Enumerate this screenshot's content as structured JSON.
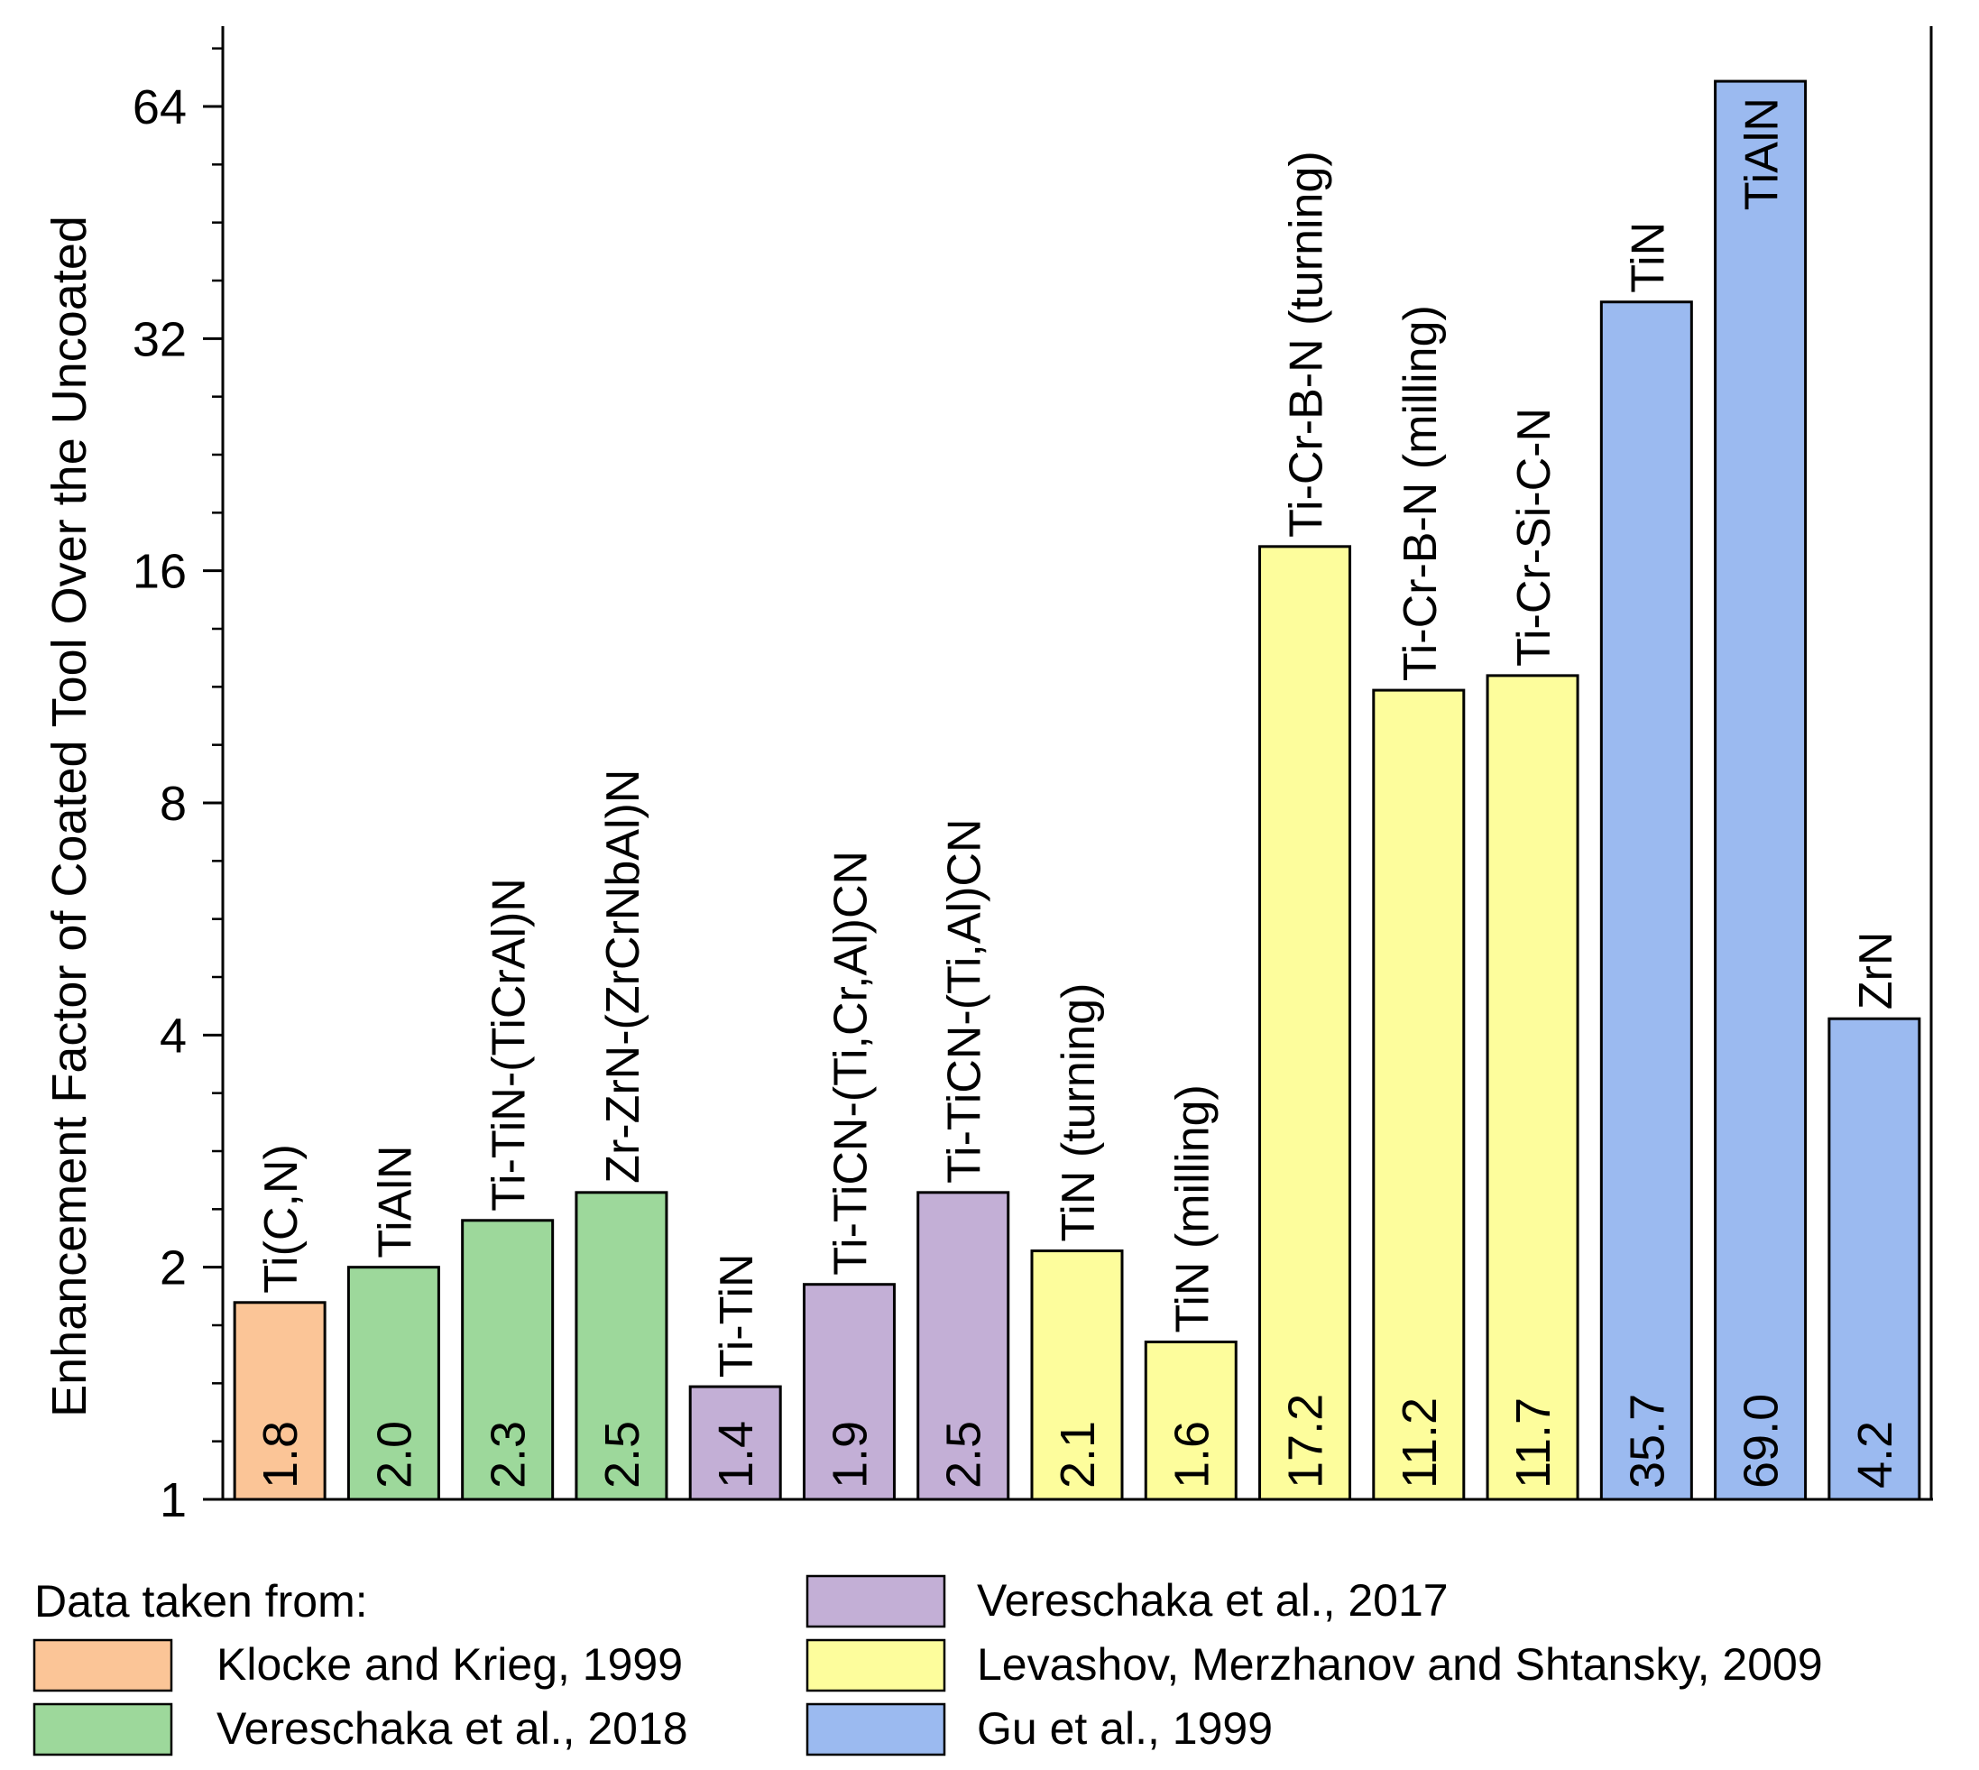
{
  "chart_data": {
    "type": "bar",
    "yscale": "log2",
    "ylabel": "Enhancement Factor of Coated Tool Over the Uncoated",
    "xlabel": "",
    "ylim": [
      1,
      90
    ],
    "yticks": [
      1,
      2,
      4,
      8,
      16,
      32,
      64
    ],
    "ytick_labels": [
      "1",
      "2",
      "4",
      "8",
      "16",
      "32",
      "64"
    ],
    "bars": [
      {
        "label": "Ti(C,N)",
        "value": 1.8,
        "value_text": "1.8",
        "group": 0
      },
      {
        "label": "TiAlN",
        "value": 2.0,
        "value_text": "2.0",
        "group": 1
      },
      {
        "label": "Ti-TiN-(TiCrAl)N",
        "value": 2.3,
        "value_text": "2.3",
        "group": 1
      },
      {
        "label": "Zr-ZrN-(ZrCrNbAl)N",
        "value": 2.5,
        "value_text": "2.5",
        "group": 1
      },
      {
        "label": "Ti-TiN",
        "value": 1.4,
        "value_text": "1.4",
        "group": 2
      },
      {
        "label": "Ti-TiCN-(Ti,Cr,Al)CN",
        "value": 1.9,
        "value_text": "1.9",
        "group": 2
      },
      {
        "label": "Ti-TiCN-(Ti,Al)CN",
        "value": 2.5,
        "value_text": "2.5",
        "group": 2
      },
      {
        "label": "TiN (turning)",
        "value": 2.1,
        "value_text": "2.1",
        "group": 3
      },
      {
        "label": "TiN (milling)",
        "value": 1.6,
        "value_text": "1.6",
        "group": 3
      },
      {
        "label": "Ti-Cr-B-N (turning)",
        "value": 17.2,
        "value_text": "17.2",
        "group": 3
      },
      {
        "label": "Ti-Cr-B-N (milling)",
        "value": 11.2,
        "value_text": "11.2",
        "group": 3
      },
      {
        "label": "Ti-Cr-Si-C-N",
        "value": 11.7,
        "value_text": "11.7",
        "group": 3
      },
      {
        "label": "TiN",
        "value": 35.7,
        "value_text": "35.7",
        "group": 4
      },
      {
        "label": "TiAlN",
        "value": 69.0,
        "value_text": "69.0",
        "group": 4
      },
      {
        "label": "ZrN",
        "value": 4.2,
        "value_text": "4.2",
        "group": 4
      }
    ],
    "groups": [
      {
        "name": "Klocke and Krieg, 1999",
        "color": "#fbc597"
      },
      {
        "name": "Vereschaka et al., 2018",
        "color": "#9dd89b"
      },
      {
        "name": "Vereschaka et al., 2017",
        "color": "#c3afd6"
      },
      {
        "name": "Levashov, Merzhanov and Shtansky, 2009",
        "color": "#fdfd9c"
      },
      {
        "name": "Gu et al., 1999",
        "color": "#9bbaf0"
      }
    ],
    "legend": {
      "title": "Data taken from:",
      "position": "bottom"
    }
  }
}
